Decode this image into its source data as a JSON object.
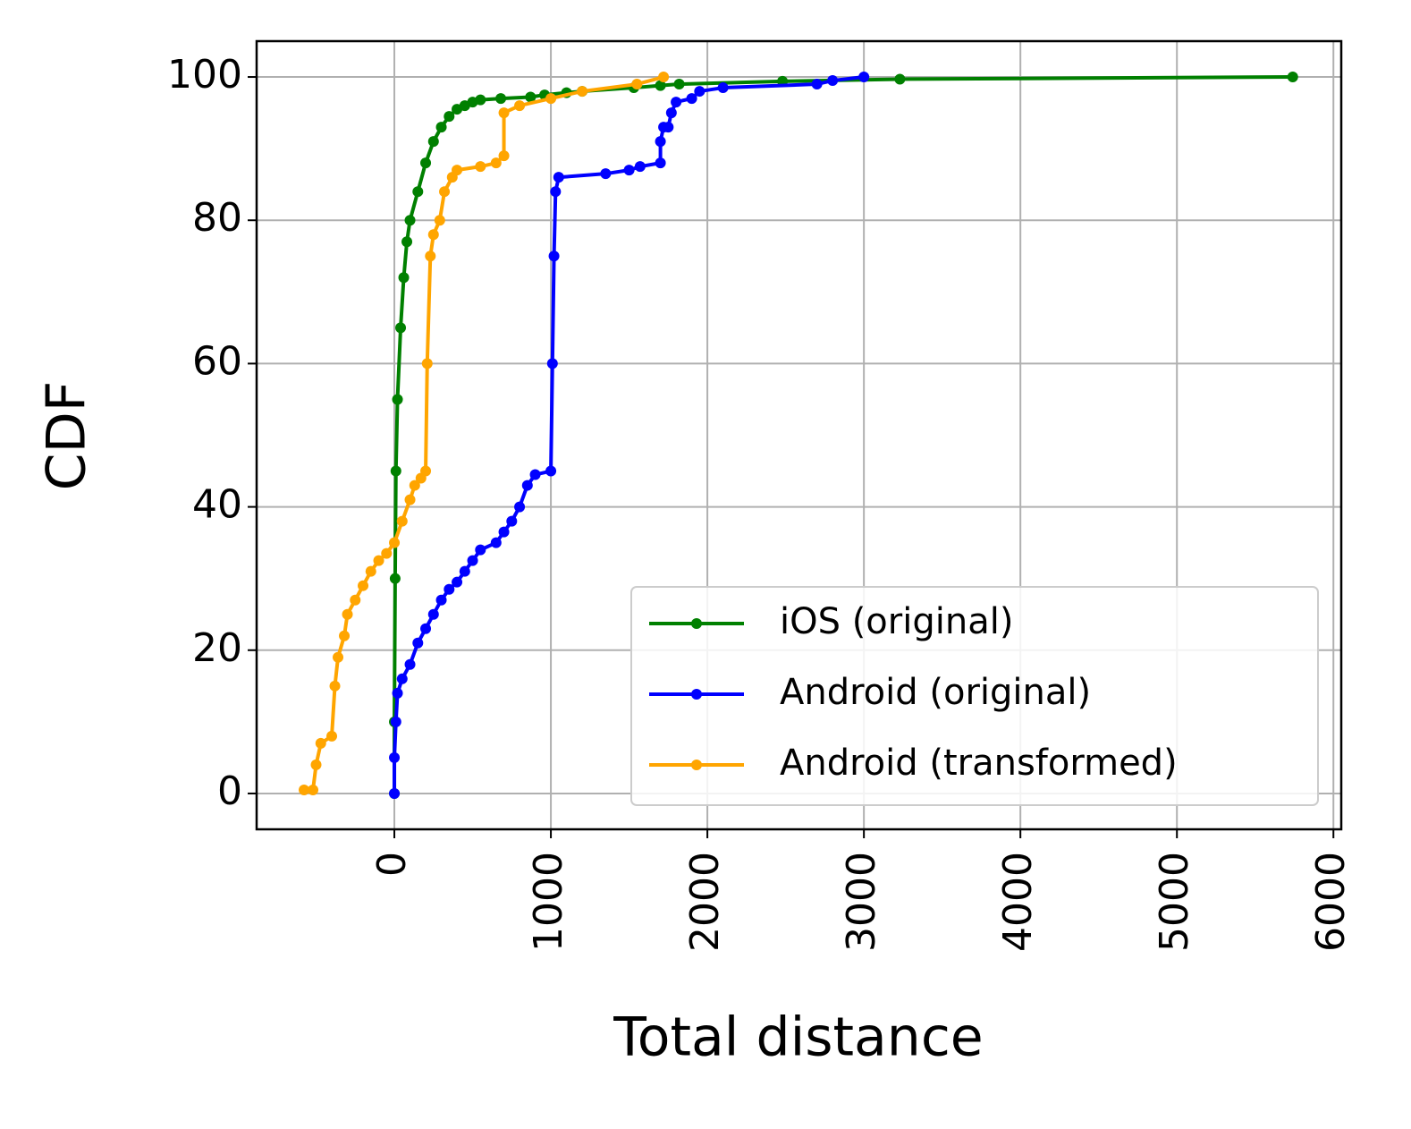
{
  "chart_data": {
    "type": "line",
    "x_label": "Total distance",
    "y_label": "CDF",
    "xlim": [
      -880,
      6050
    ],
    "ylim": [
      -5,
      105
    ],
    "xticks": [
      0,
      1000,
      2000,
      3000,
      4000,
      5000,
      6000
    ],
    "yticks": [
      0,
      20,
      40,
      60,
      80,
      100
    ],
    "grid": true,
    "legend": "lower right",
    "series": [
      {
        "name": "iOS (original)",
        "color": "#008000",
        "x": [
          0,
          0,
          5,
          10,
          20,
          40,
          60,
          80,
          100,
          150,
          200,
          250,
          300,
          350,
          400,
          450,
          500,
          550,
          680,
          870,
          960,
          1100,
          1200,
          1530,
          1700,
          1820,
          2480,
          3230,
          5740
        ],
        "values": [
          0,
          10,
          30,
          45,
          55,
          65,
          72,
          77,
          80,
          84,
          88,
          91,
          93,
          94.5,
          95.5,
          96,
          96.5,
          96.8,
          97,
          97.2,
          97.5,
          97.8,
          98,
          98.5,
          98.8,
          99,
          99.4,
          99.7,
          100
        ]
      },
      {
        "name": "Android (original)",
        "color": "#0000ff",
        "x": [
          0,
          0,
          10,
          20,
          50,
          100,
          150,
          200,
          250,
          300,
          350,
          400,
          450,
          500,
          550,
          650,
          700,
          750,
          800,
          850,
          900,
          1000,
          1010,
          1020,
          1030,
          1050,
          1350,
          1500,
          1570,
          1700,
          1700,
          1720,
          1750,
          1770,
          1800,
          1900,
          1950,
          2100,
          2700,
          2800,
          3000
        ],
        "values": [
          0,
          5,
          10,
          14,
          16,
          18,
          21,
          23,
          25,
          27,
          28.5,
          29.5,
          31,
          32.5,
          34,
          35,
          36.5,
          38,
          40,
          43,
          44.5,
          45,
          60,
          75,
          84,
          86,
          86.5,
          87,
          87.5,
          88,
          91,
          93,
          93,
          95,
          96.5,
          97,
          98,
          98.5,
          99,
          99.5,
          100
        ]
      },
      {
        "name": "Android (transformed)",
        "color": "#ffa500",
        "x": [
          -577,
          -520,
          -500,
          -470,
          -400,
          -380,
          -360,
          -320,
          -300,
          -250,
          -200,
          -150,
          -100,
          -50,
          0,
          50,
          100,
          130,
          170,
          200,
          210,
          230,
          250,
          290,
          320,
          370,
          400,
          550,
          650,
          700,
          700,
          800,
          1000,
          1200,
          1550,
          1720
        ],
        "values": [
          0.5,
          0.5,
          4,
          7,
          8,
          15,
          19,
          22,
          25,
          27,
          29,
          31,
          32.5,
          33.5,
          35,
          38,
          41,
          43,
          44,
          45,
          60,
          75,
          78,
          80,
          84,
          86,
          87,
          87.5,
          88,
          89,
          95,
          96,
          97,
          98,
          99,
          100
        ]
      }
    ]
  }
}
